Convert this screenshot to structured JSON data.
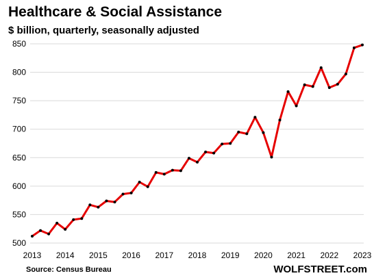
{
  "chart_data": {
    "type": "line",
    "title": "Healthcare & Social Assistance",
    "subtitle": "$ billion, quarterly, seasonally adjusted",
    "xlabel": "",
    "ylabel": "",
    "ylim": [
      500,
      850
    ],
    "yticks": [
      "500",
      "550",
      "600",
      "650",
      "700",
      "750",
      "800",
      "850"
    ],
    "xticks": [
      "2013",
      "2014",
      "2015",
      "2016",
      "2017",
      "2018",
      "2019",
      "2020",
      "2021",
      "2022",
      "2023"
    ],
    "grid": "horizontal",
    "legend": "none",
    "colors": {
      "line": "#e60000",
      "marker": "#000000",
      "grid": "#d9d9d9"
    },
    "series": [
      {
        "x": [
          "2013-Q1",
          "2013-Q2",
          "2013-Q3",
          "2013-Q4",
          "2014-Q1",
          "2014-Q2",
          "2014-Q3",
          "2014-Q4",
          "2015-Q1",
          "2015-Q2",
          "2015-Q3",
          "2015-Q4",
          "2016-Q1",
          "2016-Q2",
          "2016-Q3",
          "2016-Q4",
          "2017-Q1",
          "2017-Q2",
          "2017-Q3",
          "2017-Q4",
          "2018-Q1",
          "2018-Q2",
          "2018-Q3",
          "2018-Q4",
          "2019-Q1",
          "2019-Q2",
          "2019-Q3",
          "2019-Q4",
          "2020-Q1",
          "2020-Q2",
          "2020-Q3",
          "2020-Q4",
          "2021-Q1",
          "2021-Q2",
          "2021-Q3",
          "2021-Q4",
          "2022-Q1",
          "2022-Q2",
          "2022-Q3",
          "2022-Q4",
          "2023-Q1"
        ],
        "values": [
          512,
          522,
          516,
          535,
          524,
          541,
          543,
          567,
          563,
          574,
          572,
          586,
          588,
          607,
          599,
          624,
          621,
          628,
          627,
          649,
          642,
          660,
          658,
          674,
          675,
          695,
          692,
          721,
          694,
          651,
          716,
          766,
          741,
          778,
          775,
          808,
          773,
          779,
          797,
          843,
          848
        ]
      }
    ],
    "source": "Source: Census Bureau",
    "brand": "WOLFSTREET.com"
  }
}
